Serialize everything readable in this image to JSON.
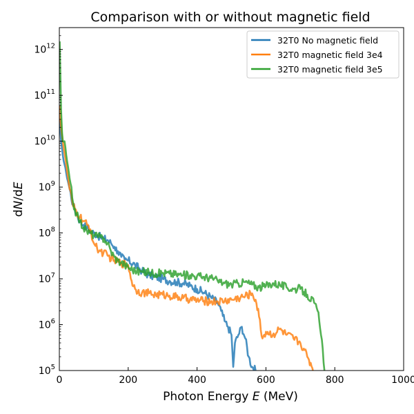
{
  "chart_data": {
    "type": "line",
    "title": "Comparison with or without magnetic field",
    "xlabel_prefix": "Photon Energy ",
    "xlabel_var": "E",
    "xlabel_unit": " (MeV)",
    "ylabel_prefix": "d",
    "ylabel_var_1": "N",
    "ylabel_mid": "/d",
    "ylabel_var_2": "E",
    "xlim": [
      0,
      1000
    ],
    "ylim": [
      100000,
      3000000000000
    ],
    "yscale": "log",
    "x_ticks": [
      "0",
      "200",
      "400",
      "600",
      "800",
      "1000"
    ],
    "y_ticks": [
      {
        "base": "10",
        "exp": "5"
      },
      {
        "base": "10",
        "exp": "6"
      },
      {
        "base": "10",
        "exp": "7"
      },
      {
        "base": "10",
        "exp": "8"
      },
      {
        "base": "10",
        "exp": "9"
      },
      {
        "base": "10",
        "exp": "10"
      },
      {
        "base": "10",
        "exp": "11"
      },
      {
        "base": "10",
        "exp": "12"
      }
    ],
    "legend_position": "top-right",
    "series": [
      {
        "name": "32T0 No magnetic field",
        "color": "#1f77b4",
        "x": [
          1,
          5,
          10,
          20,
          30,
          40,
          50,
          60,
          70,
          80,
          90,
          100,
          110,
          120,
          130,
          140,
          150,
          160,
          170,
          180,
          190,
          200,
          220,
          240,
          260,
          280,
          300,
          320,
          340,
          360,
          380,
          400,
          420,
          440,
          460,
          470,
          480,
          490,
          500,
          505,
          510,
          520,
          530,
          540,
          550,
          560,
          570
        ],
        "y": [
          30000000000,
          10000000000,
          5000000000,
          2000000000,
          900000000,
          400000000,
          260000000,
          180000000,
          150000000,
          130000000,
          110000000,
          100000000,
          90000000,
          80000000,
          75000000,
          70000000,
          60000000,
          50000000,
          40000000,
          30000000,
          26000000,
          25000000,
          20000000,
          15000000,
          12000000,
          11000000,
          10000000,
          9000000,
          8500000,
          8000000,
          7000000,
          6000000,
          5000000,
          4000000,
          3000000,
          2000000,
          1200000,
          900000,
          600000,
          120000,
          400000,
          600000,
          900000,
          500000,
          200000,
          120000,
          100000
        ]
      },
      {
        "name": "32T0 magnetic field 3e4",
        "color": "#ff7f0e",
        "x": [
          1,
          5,
          10,
          20,
          30,
          40,
          50,
          60,
          70,
          80,
          90,
          100,
          110,
          120,
          140,
          160,
          180,
          200,
          210,
          220,
          240,
          260,
          280,
          300,
          320,
          340,
          360,
          380,
          400,
          420,
          440,
          460,
          480,
          500,
          520,
          540,
          560,
          570,
          580,
          590,
          600,
          620,
          640,
          660,
          680,
          700,
          710,
          720,
          740
        ],
        "y": [
          60000000000,
          20000000000,
          10000000000,
          3000000000,
          900000000,
          380000000,
          280000000,
          220000000,
          180000000,
          150000000,
          120000000,
          60000000,
          45000000,
          40000000,
          32000000,
          25000000,
          22000000,
          20000000,
          9000000,
          6000000,
          5000000,
          4800000,
          4500000,
          4500000,
          4300000,
          4000000,
          3800000,
          3600000,
          3400000,
          3300000,
          3200000,
          3200000,
          3300000,
          3500000,
          3800000,
          4200000,
          4800000,
          3500000,
          1500000,
          500000,
          700000,
          600000,
          800000,
          600000,
          500000,
          400000,
          300000,
          200000,
          100000
        ]
      },
      {
        "name": "32T0 magnetic field 3e5",
        "color": "#2ca02c",
        "x": [
          1,
          3,
          5,
          8,
          10,
          15,
          20,
          30,
          40,
          50,
          60,
          70,
          80,
          90,
          100,
          110,
          120,
          130,
          140,
          150,
          160,
          170,
          180,
          190,
          200,
          220,
          240,
          260,
          280,
          300,
          320,
          340,
          360,
          380,
          400,
          420,
          440,
          460,
          480,
          500,
          520,
          540,
          560,
          580,
          600,
          620,
          640,
          660,
          680,
          700,
          720,
          740,
          750,
          755,
          760,
          765,
          770
        ],
        "y": [
          1500000000000,
          300000000000,
          50000000000,
          15000000000,
          10000000000,
          10000000000,
          5000000000,
          1500000000,
          450000000,
          250000000,
          180000000,
          130000000,
          110000000,
          100000000,
          90000000,
          85000000,
          80000000,
          75000000,
          60000000,
          40000000,
          30000000,
          25000000,
          23000000,
          20000000,
          18000000,
          15000000,
          14000000,
          14000000,
          13000000,
          13500000,
          13000000,
          12500000,
          12000000,
          12000000,
          11500000,
          11000000,
          10500000,
          9000000,
          8000000,
          7500000,
          8000000,
          8500000,
          7500000,
          6500000,
          7000000,
          8000000,
          7500000,
          6500000,
          6000000,
          6000000,
          4500000,
          3000000,
          2000000,
          1200000,
          600000,
          300000,
          100000
        ]
      }
    ]
  }
}
